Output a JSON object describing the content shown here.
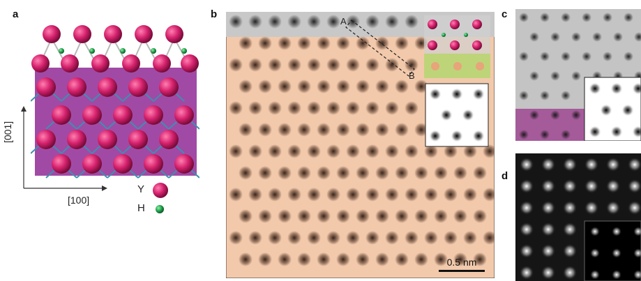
{
  "figure": {
    "panel_labels": {
      "a": "a",
      "b": "b",
      "c": "c",
      "d": "d"
    },
    "panel_a": {
      "axis_vertical_label": "[001]",
      "axis_horizontal_label": "[100]",
      "legend": [
        {
          "symbol": "Y",
          "color": "#d6226e"
        },
        {
          "symbol": "H",
          "color": "#1f9e4a"
        }
      ]
    },
    "panel_b": {
      "linescan_start": "A",
      "linescan_end": "B",
      "scale_bar_label": "0.5 nm"
    },
    "colors": {
      "atom_y": "#d6226e",
      "atom_h": "#1f9e4a",
      "substrate": "#a14aa5",
      "film_tint": "#f2c6a6",
      "haadf_bg": "#c8c8c8"
    }
  }
}
